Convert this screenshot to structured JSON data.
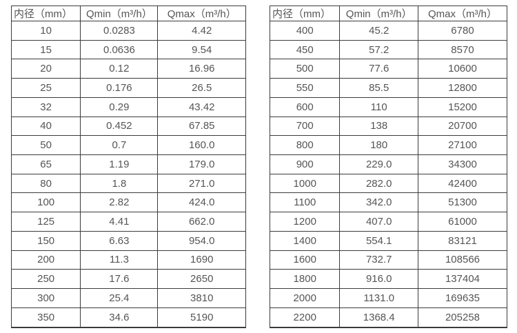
{
  "page": {
    "background_color": "#ffffff",
    "text_color": "#555555",
    "border_color": "#3a3a3a"
  },
  "tables": [
    {
      "name": "flow-rate-table-small-diameters",
      "headers": [
        "内径（mm）",
        "Qmin（m³/h）",
        "Qmax（m³/h）"
      ],
      "rows": [
        [
          "10",
          "0.0283",
          "4.42"
        ],
        [
          "15",
          "0.0636",
          "9.54"
        ],
        [
          "20",
          "0.12",
          "16.96"
        ],
        [
          "25",
          "0.176",
          "26.5"
        ],
        [
          "32",
          "0.29",
          "43.42"
        ],
        [
          "40",
          "0.452",
          "67.85"
        ],
        [
          "50",
          "0.7",
          "160.0"
        ],
        [
          "65",
          "1.19",
          "179.0"
        ],
        [
          "80",
          "1.8",
          "271.0"
        ],
        [
          "100",
          "2.82",
          "424.0"
        ],
        [
          "125",
          "4.41",
          "662.0"
        ],
        [
          "150",
          "6.63",
          "954.0"
        ],
        [
          "200",
          "11.3",
          "1690"
        ],
        [
          "250",
          "17.6",
          "2650"
        ],
        [
          "300",
          "25.4",
          "3810"
        ],
        [
          "350",
          "34.6",
          "5190"
        ]
      ]
    },
    {
      "name": "flow-rate-table-large-diameters",
      "headers": [
        "内径（mm）",
        "Qmin（m³/h）",
        "Qmax（m³/h）"
      ],
      "rows": [
        [
          "400",
          "45.2",
          "6780"
        ],
        [
          "450",
          "57.2",
          "8570"
        ],
        [
          "500",
          "77.6",
          "10600"
        ],
        [
          "550",
          "85.5",
          "12800"
        ],
        [
          "600",
          "110",
          "15200"
        ],
        [
          "700",
          "138",
          "20700"
        ],
        [
          "800",
          "180",
          "27100"
        ],
        [
          "900",
          "229.0",
          "34300"
        ],
        [
          "1000",
          "282.0",
          "42400"
        ],
        [
          "1100",
          "342.0",
          "51300"
        ],
        [
          "1200",
          "407.0",
          "61000"
        ],
        [
          "1400",
          "554.1",
          "83121"
        ],
        [
          "1600",
          "732.7",
          "108566"
        ],
        [
          "1800",
          "916.0",
          "137404"
        ],
        [
          "2000",
          "1131.0",
          "169635"
        ],
        [
          "2200",
          "1368.4",
          "205258"
        ]
      ]
    }
  ]
}
